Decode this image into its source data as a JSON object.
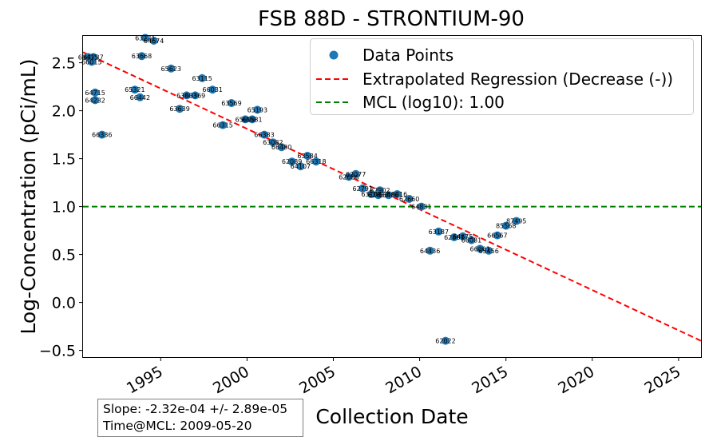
{
  "chart_data": {
    "type": "scatter",
    "title": "FSB 88D - STRONTIUM-90",
    "xlabel": "Collection Date",
    "ylabel": "Log-Concentration (pCi/mL)",
    "xlim": [
      1990.5,
      2026.3
    ],
    "ylim": [
      -0.57,
      2.78
    ],
    "x_ticks": [
      1995,
      2000,
      2005,
      2010,
      2015,
      2020,
      2025
    ],
    "y_ticks": [
      -0.5,
      0.0,
      0.5,
      1.0,
      1.5,
      2.0,
      2.5
    ],
    "grid": false,
    "legend_position": "top-right",
    "legend": [
      "Data Points",
      "Extrapolated Regression (Decrease (-))",
      "MCL (log10): 1.00"
    ],
    "colors": {
      "points": "#1f77b4",
      "regression": "#ff0000",
      "mcl": "#008000"
    },
    "series": [
      {
        "name": "Data Points",
        "points": [
          {
            "x": 1990.8,
            "y": 2.56,
            "label": "68415"
          },
          {
            "x": 1991.1,
            "y": 2.56,
            "label": "64737"
          },
          {
            "x": 1991.0,
            "y": 2.51,
            "label": "66015"
          },
          {
            "x": 1991.2,
            "y": 2.19,
            "label": "64715"
          },
          {
            "x": 1991.2,
            "y": 2.11,
            "label": "64232"
          },
          {
            "x": 1991.6,
            "y": 1.75,
            "label": "66336"
          },
          {
            "x": 1993.5,
            "y": 2.22,
            "label": "65321"
          },
          {
            "x": 1993.8,
            "y": 2.14,
            "label": "66442"
          },
          {
            "x": 1994.1,
            "y": 2.76,
            "label": "63221"
          },
          {
            "x": 1994.6,
            "y": 2.73,
            "label": "64674"
          },
          {
            "x": 1993.9,
            "y": 2.57,
            "label": "63668"
          },
          {
            "x": 1995.6,
            "y": 2.44,
            "label": "65623"
          },
          {
            "x": 1996.1,
            "y": 2.02,
            "label": "63639"
          },
          {
            "x": 1996.5,
            "y": 2.16,
            "label": "63003"
          },
          {
            "x": 1997.0,
            "y": 2.16,
            "label": "63369"
          },
          {
            "x": 1997.4,
            "y": 2.34,
            "label": "63115"
          },
          {
            "x": 1998.0,
            "y": 2.22,
            "label": "66031"
          },
          {
            "x": 1998.6,
            "y": 1.85,
            "label": "66315"
          },
          {
            "x": 1999.1,
            "y": 2.08,
            "label": "63569"
          },
          {
            "x": 1999.9,
            "y": 1.91,
            "label": "65606"
          },
          {
            "x": 2000.3,
            "y": 1.91,
            "label": "65581"
          },
          {
            "x": 2000.6,
            "y": 2.01,
            "label": "65193"
          },
          {
            "x": 2001.0,
            "y": 1.75,
            "label": "66383"
          },
          {
            "x": 2001.5,
            "y": 1.67,
            "label": "63082"
          },
          {
            "x": 2002.0,
            "y": 1.62,
            "label": "66480"
          },
          {
            "x": 2002.6,
            "y": 1.47,
            "label": "62089"
          },
          {
            "x": 2003.1,
            "y": 1.42,
            "label": "64107"
          },
          {
            "x": 2003.5,
            "y": 1.53,
            "label": "63584"
          },
          {
            "x": 2004.0,
            "y": 1.47,
            "label": "66318"
          },
          {
            "x": 2005.9,
            "y": 1.31,
            "label": "62686"
          },
          {
            "x": 2006.3,
            "y": 1.34,
            "label": "62077"
          },
          {
            "x": 2006.7,
            "y": 1.19,
            "label": "62791"
          },
          {
            "x": 2007.2,
            "y": 1.13,
            "label": "63108"
          },
          {
            "x": 2007.7,
            "y": 1.17,
            "label": "62902"
          },
          {
            "x": 2007.6,
            "y": 1.12,
            "label": "62633"
          },
          {
            "x": 2008.2,
            "y": 1.12,
            "label": "66486"
          },
          {
            "x": 2008.7,
            "y": 1.13,
            "label": "68016"
          },
          {
            "x": 2009.4,
            "y": 1.08,
            "label": "62660"
          },
          {
            "x": 2010.1,
            "y": 1.0,
            "label": "64831"
          },
          {
            "x": 2010.6,
            "y": 0.54,
            "label": "64436"
          },
          {
            "x": 2011.1,
            "y": 0.74,
            "label": "63187"
          },
          {
            "x": 2011.5,
            "y": -0.4,
            "label": "62022"
          },
          {
            "x": 2012.0,
            "y": 0.68,
            "label": "62867"
          },
          {
            "x": 2012.5,
            "y": 0.69,
            "label": "64675"
          },
          {
            "x": 2013.0,
            "y": 0.65,
            "label": "66081"
          },
          {
            "x": 2013.5,
            "y": 0.56,
            "label": "66001"
          },
          {
            "x": 2014.0,
            "y": 0.54,
            "label": "65456"
          },
          {
            "x": 2014.5,
            "y": 0.7,
            "label": "66567"
          },
          {
            "x": 2015.0,
            "y": 0.8,
            "label": "85568"
          },
          {
            "x": 2015.6,
            "y": 0.85,
            "label": "87495"
          }
        ]
      },
      {
        "name": "Extrapolated Regression (Decrease (-))",
        "points": [
          {
            "x": 1990.5,
            "y": 2.61
          },
          {
            "x": 2026.3,
            "y": -0.4
          }
        ]
      },
      {
        "name": "MCL (log10): 1.00",
        "points": [
          {
            "x": 1990.5,
            "y": 1.0
          },
          {
            "x": 2026.3,
            "y": 1.0
          }
        ]
      }
    ]
  },
  "stats": {
    "slope": "Slope: -2.32e-04 +/- 2.89e-05",
    "time_at_mcl": "Time@MCL: 2009-05-20"
  }
}
